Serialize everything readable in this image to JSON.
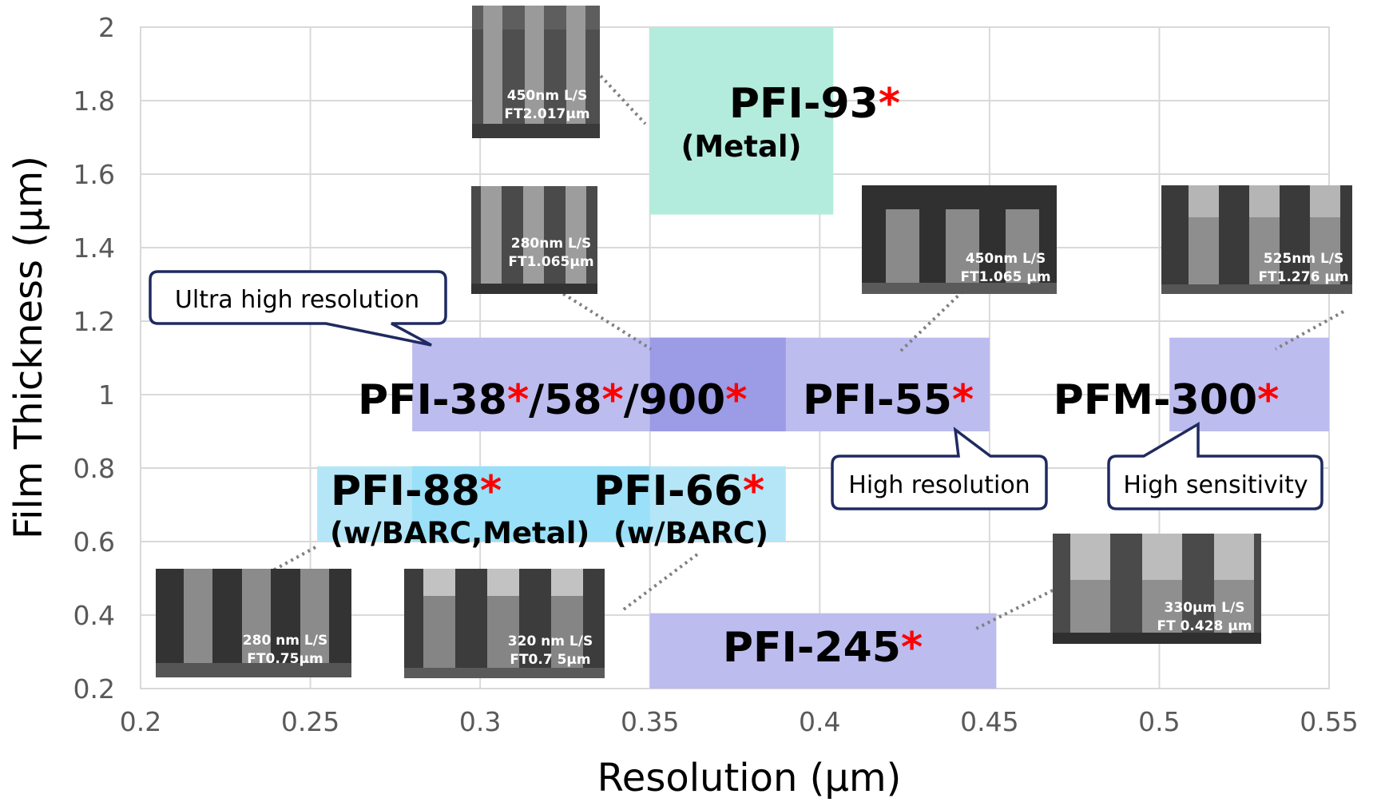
{
  "chart_data": {
    "type": "scatter",
    "xlabel": "Resolution (μm)",
    "ylabel": "Film Thickness (μm)",
    "xlim": [
      0.2,
      0.55
    ],
    "ylim": [
      0.2,
      2.0
    ],
    "x_ticks": [
      "0.2",
      "0.25",
      "0.3",
      "0.35",
      "0.4",
      "0.45",
      "0.5",
      "0.55"
    ],
    "y_ticks": [
      "0.2",
      "0.4",
      "0.6",
      "0.8",
      "1",
      "1.2",
      "1.4",
      "1.6",
      "1.8",
      "2"
    ],
    "grid": true,
    "colors": {
      "purple_region": "#bcbcee",
      "overlap_region": "#9b9be6",
      "teal_region": "#b3ecdc",
      "cyan_region": "#b4e6f8",
      "cyan_overlap_region": "#99e0f8",
      "star": "#ff0000",
      "callout_border": "#1f2a60"
    },
    "regions": [
      {
        "product": "PFI-93",
        "sub": "(Metal)",
        "x": [
          0.35,
          0.404
        ],
        "y": [
          1.49,
          2.0
        ],
        "color": "teal"
      },
      {
        "product": "PFI-38/58/900",
        "x": [
          0.28,
          0.39
        ],
        "y": [
          0.9,
          1.155
        ],
        "color": "purple"
      },
      {
        "product": "PFI-55",
        "x": [
          0.35,
          0.45
        ],
        "y": [
          0.9,
          1.155
        ],
        "color": "purple"
      },
      {
        "product": "PFM-300",
        "x": [
          0.503,
          0.55
        ],
        "y": [
          0.9,
          1.155
        ],
        "color": "purple"
      },
      {
        "product": "PFI-88",
        "sub": "(w/BARC,Metal)",
        "x": [
          0.252,
          0.35
        ],
        "y": [
          0.6,
          0.805
        ],
        "color": "cyan"
      },
      {
        "product": "PFI-66",
        "sub": "(w/BARC)",
        "x": [
          0.28,
          0.39
        ],
        "y": [
          0.6,
          0.805
        ],
        "color": "cyan"
      },
      {
        "product": "PFI-245",
        "x": [
          0.35,
          0.452
        ],
        "y": [
          0.2,
          0.405
        ],
        "color": "purple"
      }
    ],
    "product_labels": {
      "pfi93": "PFI-93",
      "pfi93_sub": "(Metal)",
      "pfi38": "PFI-38",
      "pfi58": "/58",
      "pfi900": "/900",
      "pfi55": "PFI-55",
      "pfm300": "PFM-300",
      "pfi88": "PFI-88",
      "pfi88_sub": "(w/BARC,Metal)",
      "pfi66": "PFI-66",
      "pfi66_sub": "(w/BARC)",
      "pfi245": "PFI-245",
      "star": "*"
    },
    "callouts": {
      "ultra": "Ultra high resolution",
      "high_res": "High resolution",
      "high_sens": "High sensitivity"
    },
    "sem_images": [
      {
        "id": "sem-pfi93",
        "line1": "450nm L/S",
        "line2": "FT2.017μm"
      },
      {
        "id": "sem-pfi38",
        "line1": "280nm L/S",
        "line2": "FT1.065μm"
      },
      {
        "id": "sem-pfi55",
        "line1": "450nm L/S",
        "line2": "FT1.065 μm"
      },
      {
        "id": "sem-pfm300",
        "line1": "525nm L/S",
        "line2": "FT1.276 μm"
      },
      {
        "id": "sem-pfi88",
        "line1": "280 nm L/S",
        "line2": "FT0.75μm"
      },
      {
        "id": "sem-pfi66",
        "line1": "320 nm L/S",
        "line2": "FT0.7 5μm"
      },
      {
        "id": "sem-pfi245",
        "line1": "330μm L/S",
        "line2": "FT 0.428 μm"
      }
    ]
  }
}
